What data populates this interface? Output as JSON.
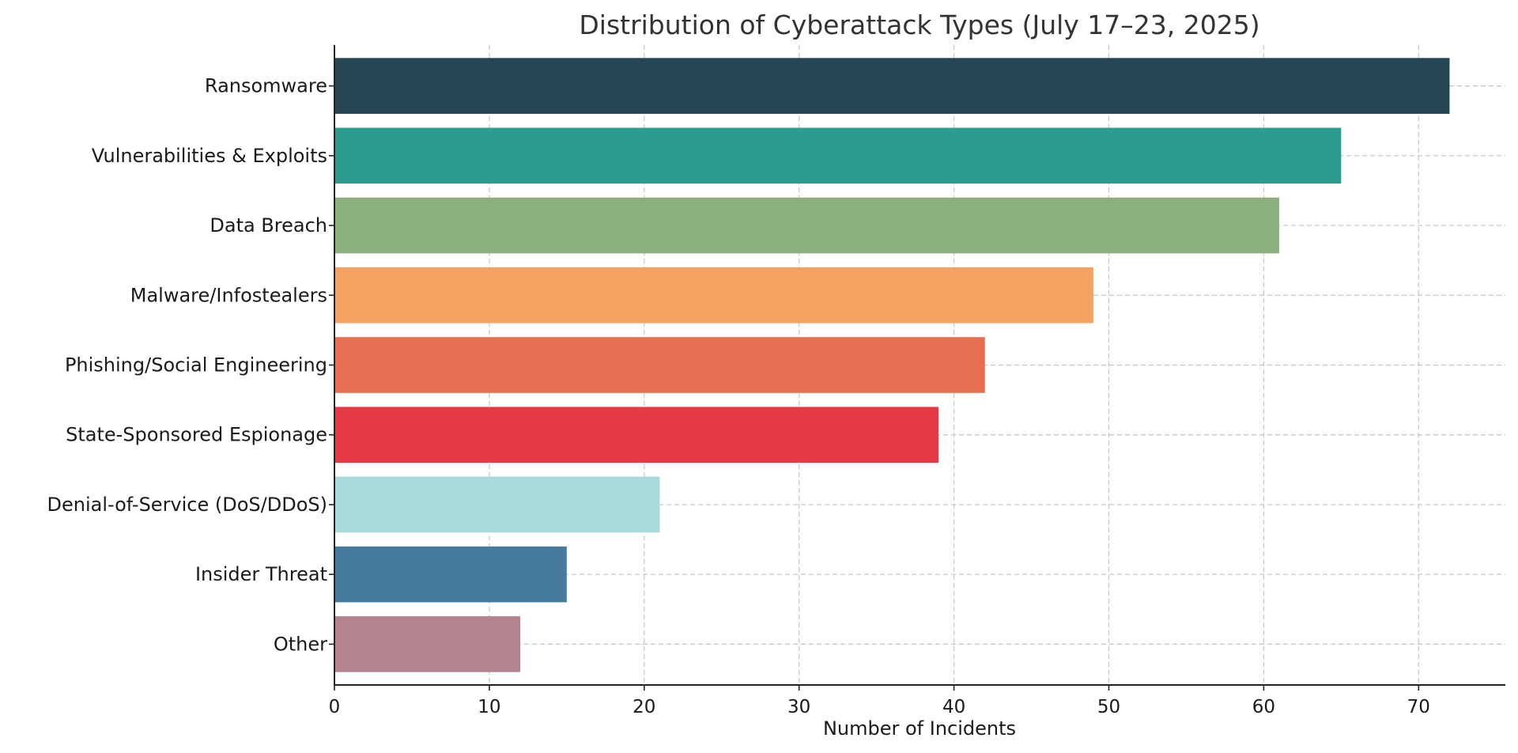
{
  "chart_data": {
    "type": "bar",
    "orientation": "horizontal",
    "title": "Distribution of Cyberattack Types (July 17–23, 2025)",
    "xlabel": "Number of Incidents",
    "ylabel": "",
    "xlim": [
      0,
      75.6
    ],
    "xticks": [
      0,
      10,
      20,
      30,
      40,
      50,
      60,
      70
    ],
    "grid": true,
    "categories": [
      "Ransomware",
      "Vulnerabilities & Exploits",
      "Data Breach",
      "Malware/Infostealers",
      "Phishing/Social Engineering",
      "State-Sponsored Espionage",
      "Denial-of-Service (DoS/DDoS)",
      "Insider Threat",
      "Other"
    ],
    "values": [
      72,
      65,
      61,
      49,
      42,
      39,
      21,
      15,
      12
    ],
    "colors": [
      "#264653",
      "#2a9d8f",
      "#8ab17d",
      "#f4a261",
      "#e76f51",
      "#e63946",
      "#a8dadc",
      "#457b9d",
      "#b5838d"
    ]
  }
}
